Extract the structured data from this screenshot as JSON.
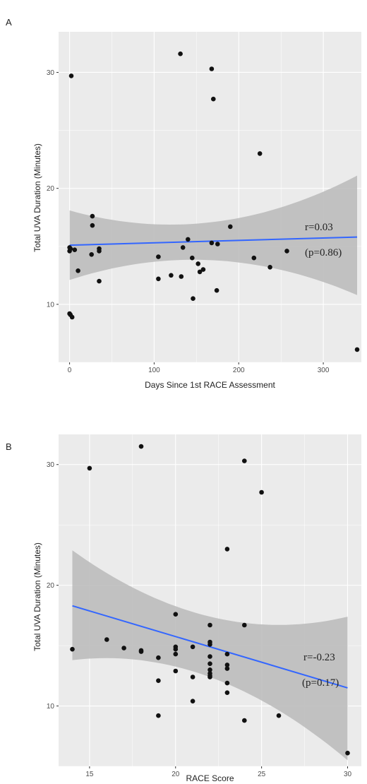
{
  "chart_data": [
    {
      "type": "scatter",
      "panel_label": "A",
      "xlabel": "Days Since 1st RACE Assessment",
      "ylabel": "Total UVA Duration (Minutes)",
      "xlim": [
        -13,
        345
      ],
      "ylim": [
        5,
        33.5
      ],
      "xticks": [
        0,
        100,
        200,
        300
      ],
      "yticks": [
        10,
        20,
        30
      ],
      "grid": true,
      "points": [
        {
          "x": 0,
          "y": 14.6
        },
        {
          "x": 0,
          "y": 14.9
        },
        {
          "x": 1,
          "y": 14.8
        },
        {
          "x": 0,
          "y": 9.2
        },
        {
          "x": 1,
          "y": 9.1
        },
        {
          "x": 3,
          "y": 8.9
        },
        {
          "x": 2,
          "y": 29.7
        },
        {
          "x": 6,
          "y": 14.7
        },
        {
          "x": 10,
          "y": 12.9
        },
        {
          "x": 27,
          "y": 17.6
        },
        {
          "x": 27,
          "y": 16.8
        },
        {
          "x": 26,
          "y": 14.3
        },
        {
          "x": 35,
          "y": 14.6
        },
        {
          "x": 35,
          "y": 14.8
        },
        {
          "x": 35,
          "y": 12.0
        },
        {
          "x": 105,
          "y": 14.1
        },
        {
          "x": 105,
          "y": 12.2
        },
        {
          "x": 120,
          "y": 12.5
        },
        {
          "x": 131,
          "y": 31.6
        },
        {
          "x": 132,
          "y": 12.4
        },
        {
          "x": 134,
          "y": 14.9
        },
        {
          "x": 140,
          "y": 15.6
        },
        {
          "x": 145,
          "y": 14.0
        },
        {
          "x": 146,
          "y": 10.5
        },
        {
          "x": 152,
          "y": 13.5
        },
        {
          "x": 154,
          "y": 12.8
        },
        {
          "x": 158,
          "y": 13.0
        },
        {
          "x": 168,
          "y": 30.3
        },
        {
          "x": 170,
          "y": 27.7
        },
        {
          "x": 168,
          "y": 15.3
        },
        {
          "x": 175,
          "y": 15.2
        },
        {
          "x": 174,
          "y": 11.2
        },
        {
          "x": 190,
          "y": 16.7
        },
        {
          "x": 218,
          "y": 14.0
        },
        {
          "x": 225,
          "y": 23.0
        },
        {
          "x": 237,
          "y": 13.2
        },
        {
          "x": 257,
          "y": 14.6
        },
        {
          "x": 340,
          "y": 6.1
        }
      ],
      "fit": {
        "x": [
          0,
          340
        ],
        "y": [
          15.1,
          15.8
        ],
        "lower": [
          12.1,
          10.8
        ],
        "upper": [
          18.1,
          21.1
        ],
        "color": "#3366ff"
      },
      "annotations": {
        "r": "r=0.03",
        "p": "(p=0.86)"
      }
    },
    {
      "type": "scatter",
      "panel_label": "B",
      "xlabel": "RACE Score",
      "ylabel": "Total UVA Duration (Minutes)",
      "xlim": [
        13.2,
        30.8
      ],
      "ylim": [
        5,
        32.5
      ],
      "xticks": [
        15,
        20,
        25,
        30
      ],
      "yticks": [
        10,
        20,
        30
      ],
      "grid": true,
      "points": [
        {
          "x": 14,
          "y": 14.7
        },
        {
          "x": 15,
          "y": 29.7
        },
        {
          "x": 16,
          "y": 15.5
        },
        {
          "x": 17,
          "y": 14.8
        },
        {
          "x": 18,
          "y": 31.5
        },
        {
          "x": 18,
          "y": 14.6
        },
        {
          "x": 18,
          "y": 14.5
        },
        {
          "x": 19,
          "y": 14.0
        },
        {
          "x": 19,
          "y": 12.1
        },
        {
          "x": 19,
          "y": 9.2
        },
        {
          "x": 20,
          "y": 17.6
        },
        {
          "x": 20,
          "y": 14.9
        },
        {
          "x": 20,
          "y": 14.7
        },
        {
          "x": 20,
          "y": 14.3
        },
        {
          "x": 20,
          "y": 12.9
        },
        {
          "x": 21,
          "y": 14.9
        },
        {
          "x": 21,
          "y": 12.4
        },
        {
          "x": 21,
          "y": 10.4
        },
        {
          "x": 22,
          "y": 16.7
        },
        {
          "x": 22,
          "y": 15.3
        },
        {
          "x": 22,
          "y": 15.1
        },
        {
          "x": 22,
          "y": 14.1
        },
        {
          "x": 22,
          "y": 13.5
        },
        {
          "x": 22,
          "y": 13.0
        },
        {
          "x": 22,
          "y": 12.7
        },
        {
          "x": 22,
          "y": 12.5
        },
        {
          "x": 22,
          "y": 12.4
        },
        {
          "x": 23,
          "y": 23.0
        },
        {
          "x": 23,
          "y": 14.3
        },
        {
          "x": 23,
          "y": 13.4
        },
        {
          "x": 23,
          "y": 13.1
        },
        {
          "x": 23,
          "y": 11.9
        },
        {
          "x": 23,
          "y": 11.1
        },
        {
          "x": 24,
          "y": 30.3
        },
        {
          "x": 24,
          "y": 16.7
        },
        {
          "x": 24,
          "y": 8.8
        },
        {
          "x": 25,
          "y": 27.7
        },
        {
          "x": 26,
          "y": 9.2
        },
        {
          "x": 30,
          "y": 6.1
        }
      ],
      "fit": {
        "x": [
          14,
          30
        ],
        "y": [
          18.3,
          11.5
        ],
        "lower": [
          13.8,
          5.5
        ],
        "upper": [
          22.9,
          17.4
        ],
        "color": "#3366ff"
      },
      "annotations": {
        "r": "r=-0.23",
        "p": "(p=0.17)"
      }
    }
  ]
}
